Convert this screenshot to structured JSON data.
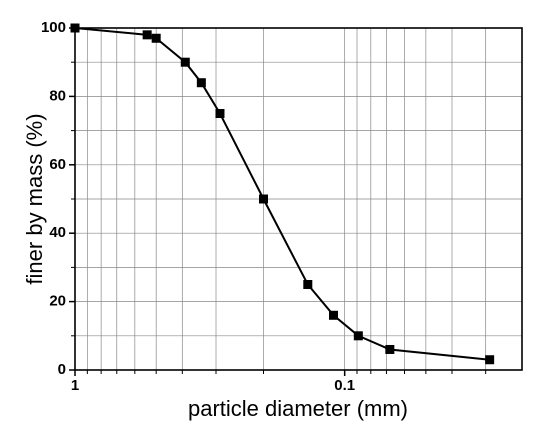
{
  "chart_data": {
    "type": "line",
    "xlabel": "particle diameter (mm)",
    "ylabel": "finer by mass (%)",
    "x": [
      1,
      0.54,
      0.5,
      0.39,
      0.34,
      0.29,
      0.2,
      0.137,
      0.11,
      0.089,
      0.068,
      0.029
    ],
    "series": [
      {
        "name": "finer by mass",
        "color": "#000000",
        "values": [
          100,
          98,
          97,
          90,
          84,
          75,
          50,
          25,
          16,
          10,
          6,
          3
        ]
      }
    ],
    "xscale": "log",
    "xlim": [
      1,
      0.022
    ],
    "xticks": [
      1,
      0.1
    ],
    "xticks_minor": [
      0.9,
      0.8,
      0.7,
      0.6,
      0.5,
      0.4,
      0.3,
      0.2,
      0.09,
      0.08,
      0.07,
      0.06,
      0.05,
      0.04,
      0.03
    ],
    "ylim": [
      0,
      100
    ],
    "yticks": [
      0,
      20,
      40,
      60,
      80,
      100
    ],
    "yticks_minor": [
      10,
      30,
      50,
      70,
      90
    ],
    "grid": true
  }
}
